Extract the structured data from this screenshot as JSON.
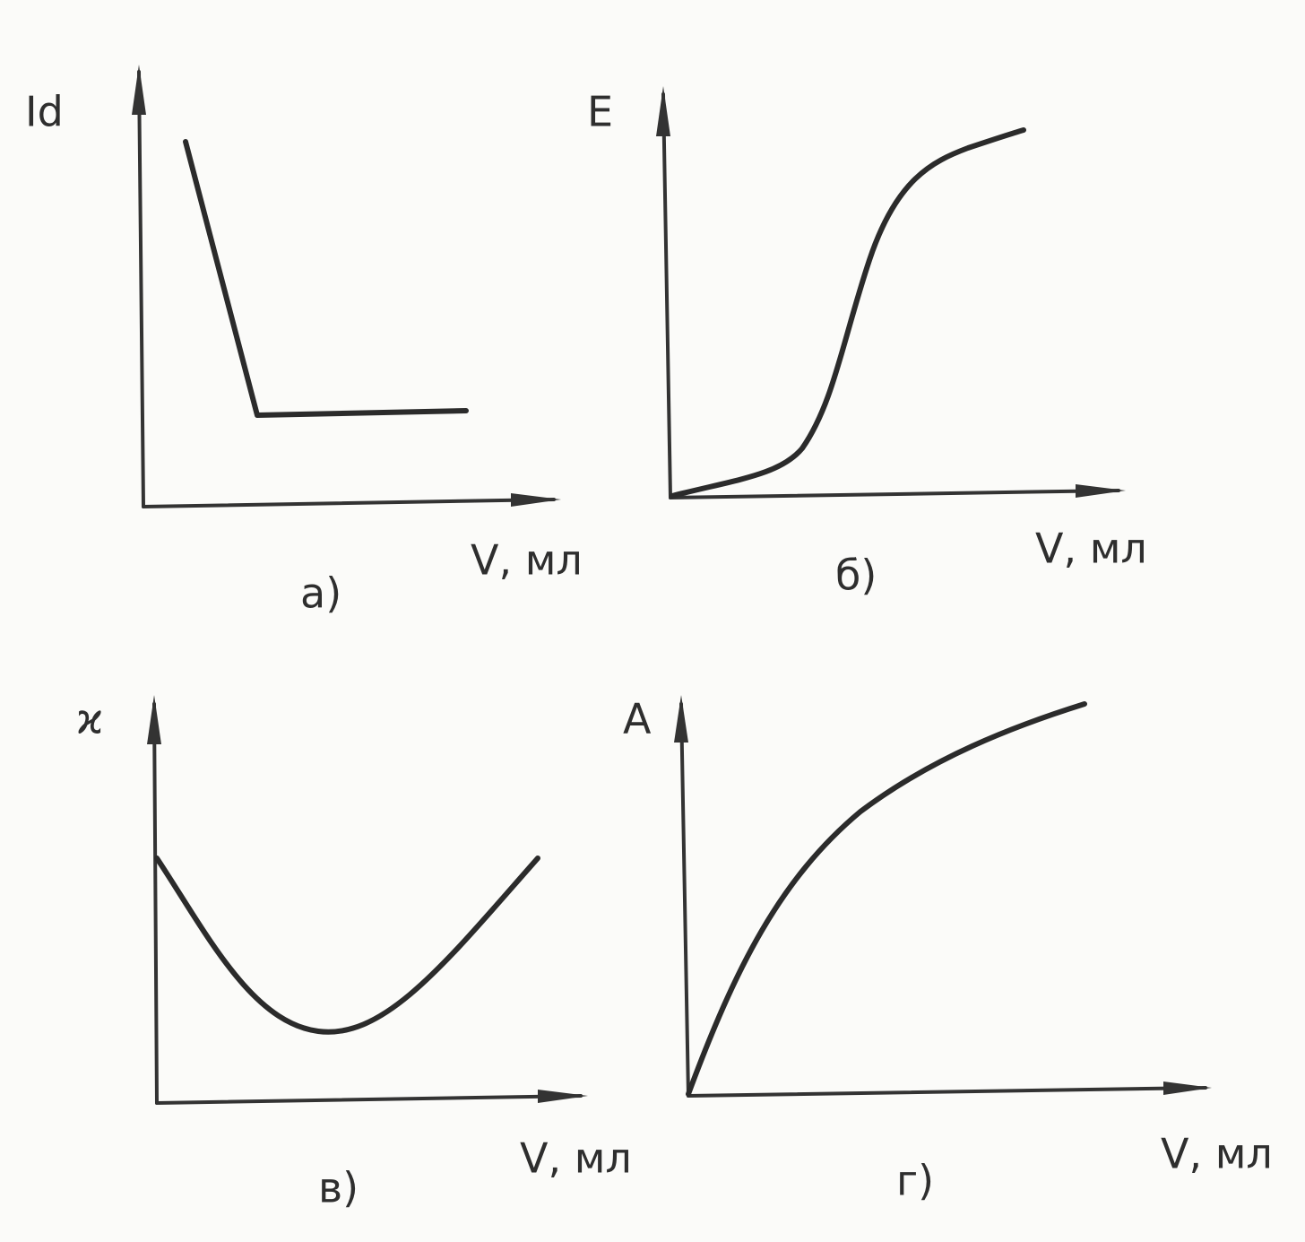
{
  "panels": [
    {
      "y_label": "Id",
      "x_label": "V, мл",
      "caption": "а)"
    },
    {
      "y_label": "E",
      "x_label": "V, мл",
      "caption": "б)"
    },
    {
      "y_label": "ϰ",
      "x_label": "V, мл",
      "caption": "в)"
    },
    {
      "y_label": "A",
      "x_label": "V, мл",
      "caption": "г)"
    }
  ]
}
